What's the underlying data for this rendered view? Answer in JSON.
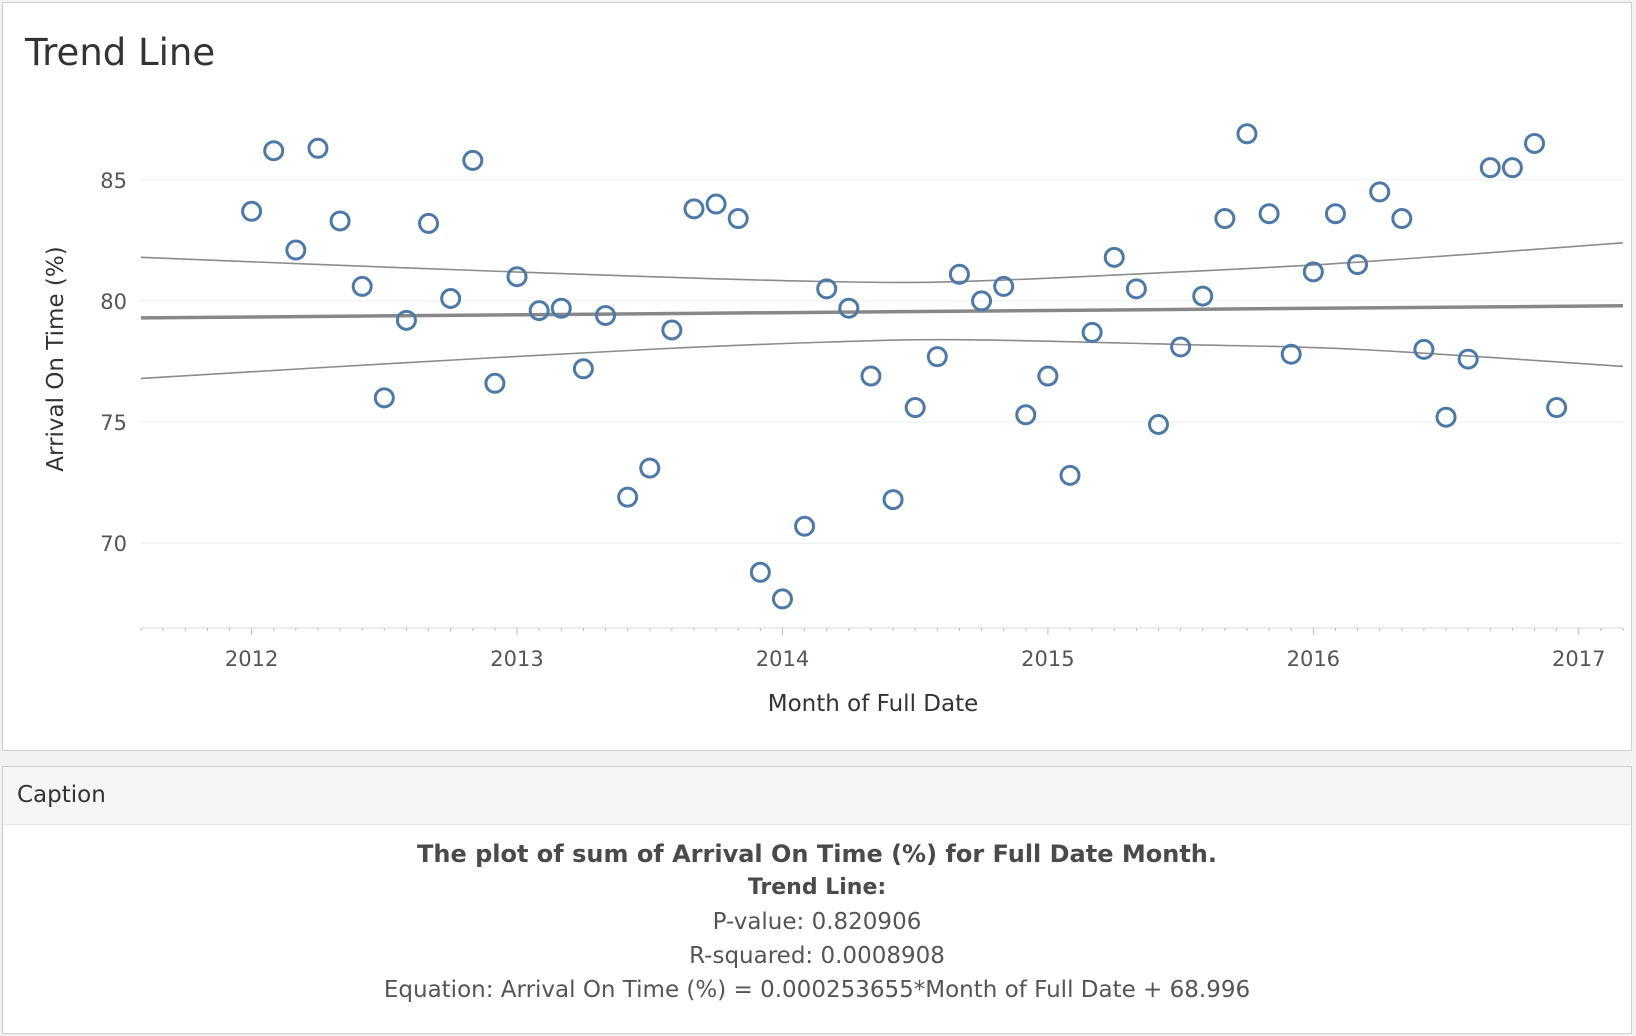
{
  "sheet": {
    "title": "Trend Line"
  },
  "caption": {
    "header": "Caption",
    "heading": "The plot of sum of Arrival On Time (%) for Full Date Month.",
    "trend_label": "Trend Line:",
    "p_value": "P-value: 0.820906",
    "r_squared": "R-squared: 0.0008908",
    "equation": "Equation: Arrival On Time (%) = 0.000253655*Month of Full Date + 68.996"
  },
  "colors": {
    "point": "#4e79a7",
    "trend": "#888888",
    "band": "#8c8c8c",
    "grid": "#ececec",
    "axis_text": "#555555"
  },
  "chart_data": {
    "type": "scatter",
    "title": "Trend Line",
    "xlabel": "Month of Full Date",
    "ylabel": "Arrival On Time (%)",
    "x_ticks": [
      "2012",
      "2013",
      "2014",
      "2015",
      "2016",
      "2017"
    ],
    "y_ticks": [
      70,
      75,
      80,
      85
    ],
    "xlim": [
      "2011-08",
      "2017-03"
    ],
    "ylim": [
      66.5,
      88.5
    ],
    "grid": "horizontal",
    "trend_line": {
      "model": "linear",
      "p_value": 0.820906,
      "r_squared": 0.0008908,
      "equation": "Arrival On Time (%) = 0.000253655*Month of Full Date + 68.996",
      "line": [
        [
          "2011-08",
          79.3
        ],
        [
          "2017-03",
          79.8
        ]
      ],
      "upper_band": [
        [
          "2011-08",
          81.8
        ],
        [
          "2012-07",
          81.4
        ],
        [
          "2013-07",
          81.0
        ],
        [
          "2014-03",
          80.8
        ],
        [
          "2014-09",
          80.8
        ],
        [
          "2015-07",
          81.2
        ],
        [
          "2016-03",
          81.6
        ],
        [
          "2017-03",
          82.4
        ]
      ],
      "lower_band": [
        [
          "2011-08",
          76.8
        ],
        [
          "2012-07",
          77.4
        ],
        [
          "2013-07",
          78.0
        ],
        [
          "2014-03",
          78.3
        ],
        [
          "2014-09",
          78.4
        ],
        [
          "2015-07",
          78.2
        ],
        [
          "2016-03",
          78.0
        ],
        [
          "2017-03",
          77.3
        ]
      ]
    },
    "series": [
      {
        "x": [
          "2012-01",
          "2012-02",
          "2012-03",
          "2012-04",
          "2012-05",
          "2012-06",
          "2012-07",
          "2012-08",
          "2012-09",
          "2012-10",
          "2012-11",
          "2012-12",
          "2013-01",
          "2013-02",
          "2013-03",
          "2013-04",
          "2013-05",
          "2013-06",
          "2013-07",
          "2013-08",
          "2013-09",
          "2013-10",
          "2013-11",
          "2013-12",
          "2014-01",
          "2014-02",
          "2014-03",
          "2014-04",
          "2014-05",
          "2014-06",
          "2014-07",
          "2014-08",
          "2014-09",
          "2014-10",
          "2014-11",
          "2014-12",
          "2015-01",
          "2015-02",
          "2015-03",
          "2015-04",
          "2015-05",
          "2015-06",
          "2015-07",
          "2015-08",
          "2015-09",
          "2015-10",
          "2015-11",
          "2015-12",
          "2016-01",
          "2016-02",
          "2016-03",
          "2016-04",
          "2016-05",
          "2016-06",
          "2016-07",
          "2016-08",
          "2016-09",
          "2016-10",
          "2016-11",
          "2016-12"
        ],
        "y": [
          83.7,
          86.2,
          82.1,
          86.3,
          83.3,
          80.6,
          76.0,
          79.2,
          83.2,
          80.1,
          85.8,
          76.6,
          81.0,
          79.6,
          79.7,
          77.2,
          79.4,
          71.9,
          73.1,
          78.8,
          83.8,
          84.0,
          83.4,
          68.8,
          67.7,
          70.7,
          80.5,
          79.7,
          76.9,
          71.8,
          75.6,
          77.7,
          81.1,
          80.0,
          80.6,
          75.3,
          76.9,
          72.8,
          78.7,
          81.8,
          80.5,
          74.9,
          78.1,
          80.2,
          83.4,
          86.9,
          83.6,
          77.8,
          81.2,
          83.6,
          81.5,
          84.5,
          83.4,
          78.0,
          75.2,
          77.6,
          85.5,
          85.5,
          86.5,
          75.6
        ]
      }
    ]
  }
}
